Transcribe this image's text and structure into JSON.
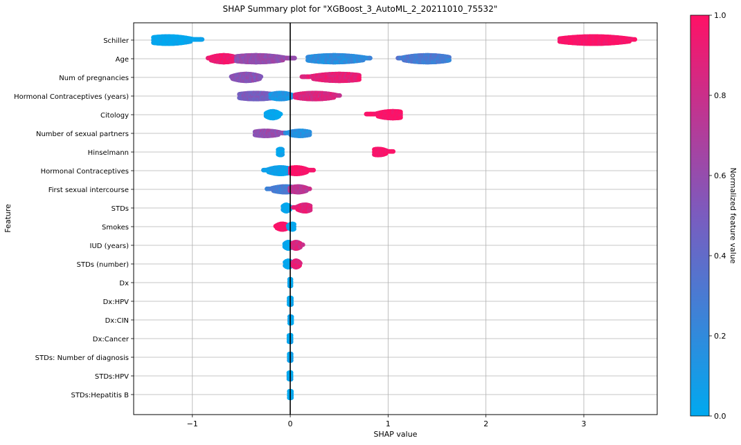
{
  "chart_data": {
    "type": "scatter",
    "title": "SHAP Summary plot for \"XGBoost_3_AutoML_2_20211010_75532\"",
    "xlabel": "SHAP value",
    "ylabel": "Feature",
    "xlim": [
      -1.6,
      3.75
    ],
    "xticks": [
      -1,
      0,
      1,
      2,
      3
    ],
    "grid": true,
    "colorbar": {
      "label": "Normalized feature value",
      "range": [
        0.0,
        1.0
      ],
      "ticks": [
        0.0,
        0.2,
        0.4,
        0.6,
        0.8,
        1.0
      ],
      "low_color": "#00a9ef",
      "high_color": "#ff1166"
    },
    "features": [
      {
        "name": "Schiller",
        "spread": 0.38,
        "clusters": [
          {
            "from": -1.4,
            "to": -0.9,
            "value": 0.0,
            "peak": -1.25
          },
          {
            "from": 2.75,
            "to": 3.52,
            "value": 1.0,
            "peak": 3.1
          }
        ]
      },
      {
        "name": "Age",
        "spread": 0.36,
        "clusters": [
          {
            "from": -0.84,
            "to": -0.55,
            "value": 0.95,
            "peak": -0.68
          },
          {
            "from": -0.55,
            "to": 0.05,
            "value": 0.6,
            "peak": -0.35
          },
          {
            "from": 0.18,
            "to": 0.82,
            "value": 0.18,
            "peak": 0.45
          },
          {
            "from": 1.1,
            "to": 1.62,
            "value": 0.3,
            "peak": 1.4
          }
        ]
      },
      {
        "name": "Num of pregnancies",
        "spread": 0.36,
        "clusters": [
          {
            "from": -0.6,
            "to": -0.3,
            "value": 0.55,
            "peak": -0.45
          },
          {
            "from": 0.12,
            "to": 0.7,
            "value": 0.9,
            "peak": 0.5
          }
        ]
      },
      {
        "name": "Hormonal Contraceptives (years)",
        "spread": 0.32,
        "clusters": [
          {
            "from": -0.52,
            "to": -0.05,
            "value": 0.5,
            "peak": -0.35
          },
          {
            "from": -0.2,
            "to": 0.05,
            "value": 0.12,
            "peak": -0.1
          },
          {
            "from": 0.05,
            "to": 0.5,
            "value": 0.85,
            "peak": 0.25
          }
        ]
      },
      {
        "name": "Citology",
        "spread": 0.36,
        "clusters": [
          {
            "from": -0.25,
            "to": -0.1,
            "value": 0.0,
            "peak": -0.18
          },
          {
            "from": 0.78,
            "to": 1.13,
            "value": 1.0,
            "peak": 1.05
          }
        ]
      },
      {
        "name": "Number of sexual partners",
        "spread": 0.26,
        "clusters": [
          {
            "from": -0.36,
            "to": -0.05,
            "value": 0.6,
            "peak": -0.25
          },
          {
            "from": -0.05,
            "to": 0.2,
            "value": 0.15,
            "peak": 0.1
          }
        ]
      },
      {
        "name": "Hinselmann",
        "spread": 0.32,
        "clusters": [
          {
            "from": -0.12,
            "to": -0.08,
            "value": 0.0,
            "peak": -0.1
          },
          {
            "from": 0.86,
            "to": 1.05,
            "value": 1.0,
            "peak": 0.9
          }
        ]
      },
      {
        "name": "Hormonal Contraceptives",
        "spread": 0.34,
        "clusters": [
          {
            "from": -0.27,
            "to": 0.0,
            "value": 0.05,
            "peak": -0.1
          },
          {
            "from": 0.0,
            "to": 0.24,
            "value": 1.0,
            "peak": 0.06
          }
        ]
      },
      {
        "name": "First sexual intercourse",
        "spread": 0.3,
        "clusters": [
          {
            "from": -0.24,
            "to": 0.05,
            "value": 0.3,
            "peak": -0.05
          },
          {
            "from": 0.0,
            "to": 0.2,
            "value": 0.75,
            "peak": 0.08
          }
        ]
      },
      {
        "name": "STDs",
        "spread": 0.34,
        "clusters": [
          {
            "from": -0.07,
            "to": 0.0,
            "value": 0.0,
            "peak": -0.04
          },
          {
            "from": 0.03,
            "to": 0.2,
            "value": 0.9,
            "peak": 0.15
          }
        ]
      },
      {
        "name": "Smokes",
        "spread": 0.3,
        "clusters": [
          {
            "from": -0.15,
            "to": -0.02,
            "value": 1.0,
            "peak": -0.08
          },
          {
            "from": -0.02,
            "to": 0.04,
            "value": 0.0,
            "peak": 0.02
          }
        ]
      },
      {
        "name": "IUD (years)",
        "spread": 0.34,
        "clusters": [
          {
            "from": -0.06,
            "to": 0.02,
            "value": 0.0,
            "peak": -0.02
          },
          {
            "from": 0.02,
            "to": 0.13,
            "value": 0.85,
            "peak": 0.06
          }
        ]
      },
      {
        "name": "STDs (number)",
        "spread": 0.34,
        "clusters": [
          {
            "from": -0.05,
            "to": 0.01,
            "value": 0.0,
            "peak": -0.02
          },
          {
            "from": 0.02,
            "to": 0.1,
            "value": 0.9,
            "peak": 0.06
          }
        ]
      },
      {
        "name": "Dx",
        "spread": 0.36,
        "clusters": [
          {
            "from": -0.01,
            "to": 0.01,
            "value": 0.0,
            "peak": 0.0
          }
        ]
      },
      {
        "name": "Dx:HPV",
        "spread": 0.36,
        "clusters": [
          {
            "from": -0.01,
            "to": 0.01,
            "value": 0.0,
            "peak": 0.0
          }
        ]
      },
      {
        "name": "Dx:CIN",
        "spread": 0.36,
        "clusters": [
          {
            "from": -0.01,
            "to": 0.01,
            "value": 0.0,
            "peak": 0.0
          }
        ]
      },
      {
        "name": "Dx:Cancer",
        "spread": 0.36,
        "clusters": [
          {
            "from": -0.01,
            "to": 0.01,
            "value": 0.0,
            "peak": 0.0
          }
        ]
      },
      {
        "name": "STDs: Number of diagnosis",
        "spread": 0.36,
        "clusters": [
          {
            "from": -0.01,
            "to": 0.01,
            "value": 0.0,
            "peak": 0.0
          }
        ]
      },
      {
        "name": "STDs:HPV",
        "spread": 0.36,
        "clusters": [
          {
            "from": -0.01,
            "to": 0.01,
            "value": 0.0,
            "peak": 0.0
          }
        ]
      },
      {
        "name": "STDs:Hepatitis B",
        "spread": 0.36,
        "clusters": [
          {
            "from": -0.01,
            "to": 0.01,
            "value": 0.0,
            "peak": 0.0
          }
        ]
      }
    ]
  }
}
